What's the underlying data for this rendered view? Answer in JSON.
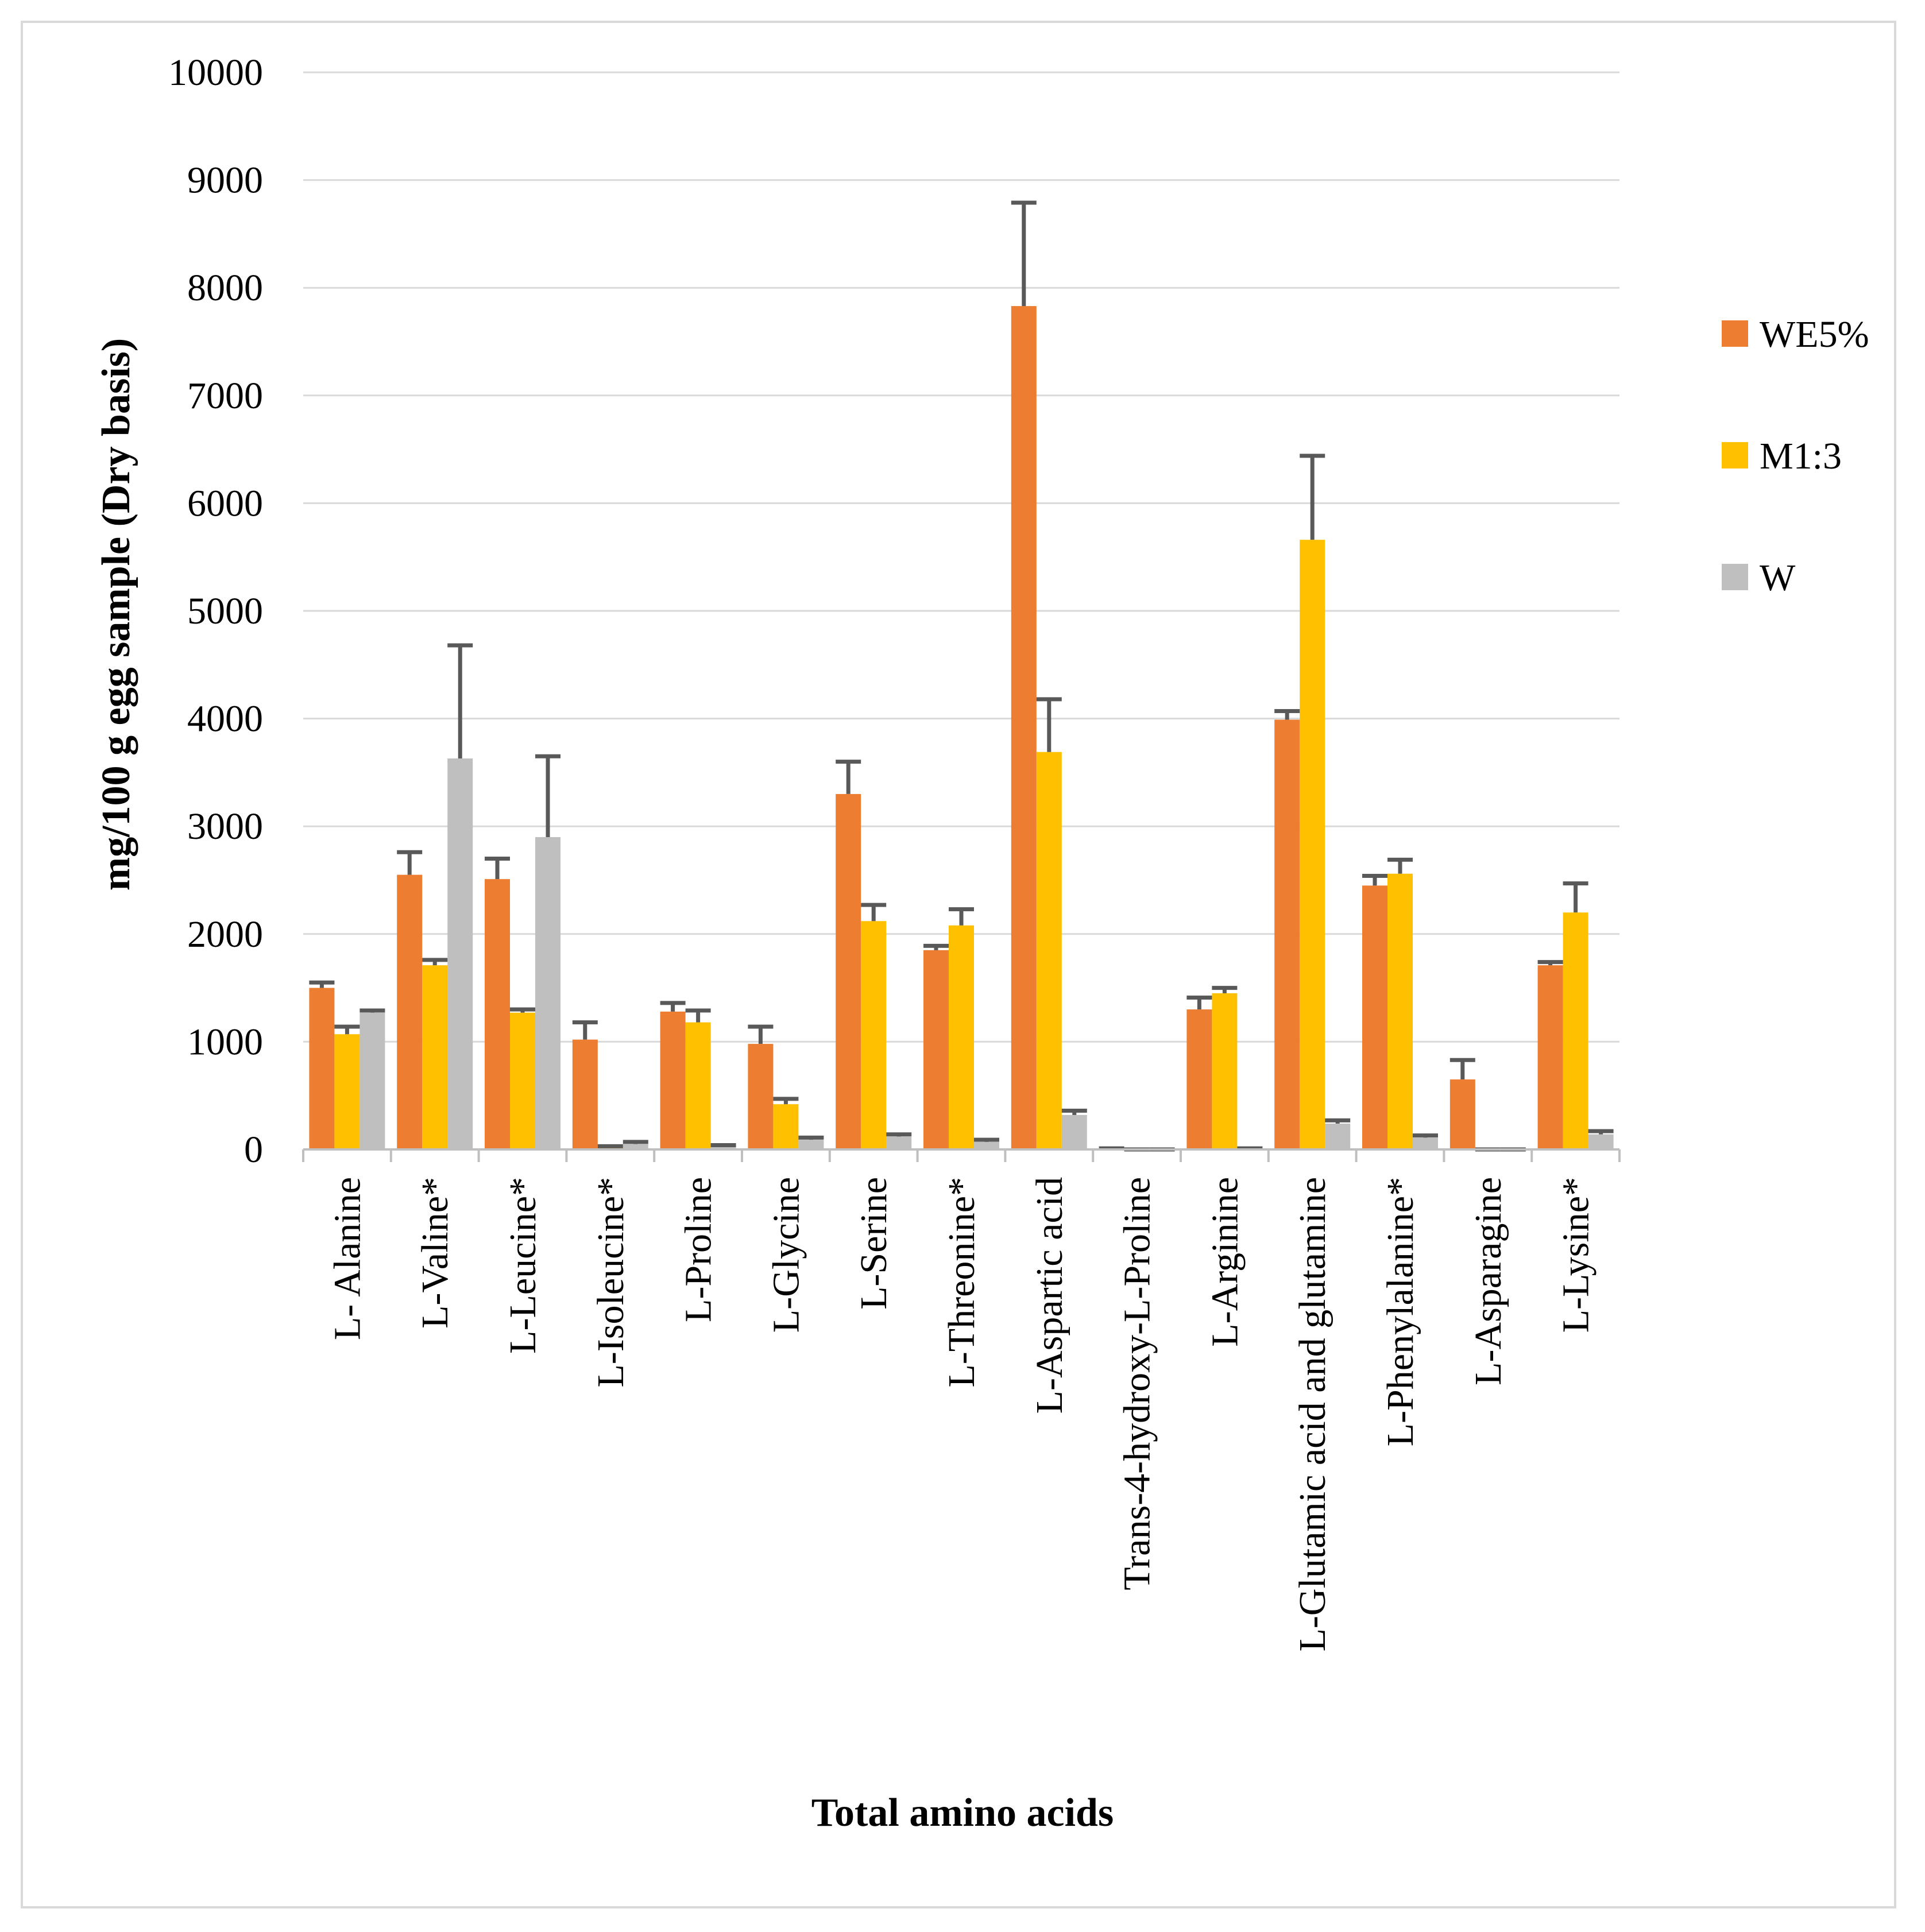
{
  "chart_data": {
    "type": "bar",
    "xlabel": "Total amino acids",
    "ylabel": "mg/100 g egg sample (Dry basis)",
    "ylim": [
      0,
      10000
    ],
    "yticks": [
      "0",
      "1000",
      "2000",
      "3000",
      "4000",
      "5000",
      "6000",
      "7000",
      "8000",
      "9000",
      "10000"
    ],
    "grid": true,
    "legend_position": "right",
    "categories": [
      "L- Alanine",
      "L-Valine*",
      "L-Leucine*",
      "L-Isoleucine*",
      "L-Proline",
      "L-Glycine",
      "L-Serine",
      "L-Threonine*",
      "L-Aspartic acid",
      "Trans-4-hydroxy-L-Proline",
      "L-Arginine",
      "L-Glutamic acid and glutamine",
      "L-Phenylalanine*",
      "L-Asparagine",
      "L-Lysine*"
    ],
    "series": [
      {
        "name": "WE5%",
        "color": "#ed7d31",
        "values": [
          1500,
          2550,
          2510,
          1020,
          1280,
          980,
          3300,
          1850,
          7830,
          10,
          1300,
          3990,
          2450,
          650,
          1710
        ],
        "errors": [
          50,
          210,
          190,
          160,
          80,
          160,
          300,
          40,
          960,
          0,
          110,
          80,
          90,
          180,
          30
        ]
      },
      {
        "name": "M1:3",
        "color": "#ffc000",
        "values": [
          1070,
          1710,
          1270,
          20,
          1180,
          420,
          2120,
          2080,
          3690,
          0,
          1450,
          5660,
          2560,
          0,
          2200
        ],
        "errors": [
          70,
          50,
          30,
          10,
          110,
          50,
          150,
          150,
          490,
          0,
          50,
          780,
          130,
          0,
          270
        ]
      },
      {
        "name": "W",
        "color": "#bfbfbf",
        "values": [
          1270,
          3630,
          2900,
          50,
          30,
          90,
          120,
          70,
          320,
          0,
          0,
          240,
          110,
          0,
          140
        ],
        "errors": [
          20,
          1050,
          750,
          20,
          10,
          20,
          20,
          20,
          40,
          0,
          10,
          30,
          20,
          0,
          30
        ]
      }
    ],
    "error_bar_color": "#595959"
  }
}
